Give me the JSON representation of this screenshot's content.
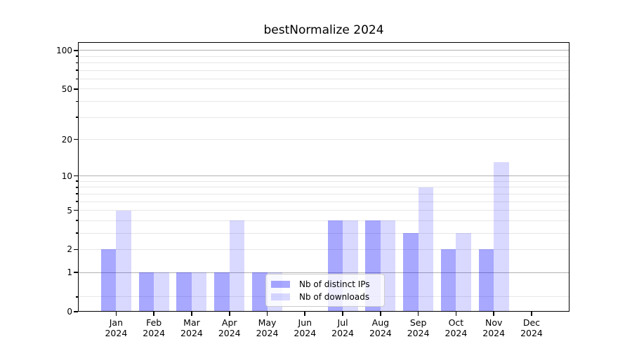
{
  "chart_data": {
    "type": "bar",
    "title": "bestNormalize 2024",
    "categories": [
      "Jan",
      "Feb",
      "Mar",
      "Apr",
      "May",
      "Jun",
      "Jul",
      "Aug",
      "Sep",
      "Oct",
      "Nov",
      "Dec"
    ],
    "x_year_label": "2024",
    "series": [
      {
        "name": "Nb of distinct IPs",
        "color": "rgba(0,0,255,0.34)",
        "hex_on_white": "#a8a8ff",
        "values": [
          2,
          1,
          1,
          1,
          1,
          0,
          4,
          4,
          3,
          2,
          2,
          0
        ]
      },
      {
        "name": "Nb of downloads",
        "color": "rgba(0,0,255,0.15)",
        "hex_on_white": "#d9d9ff",
        "values": [
          5,
          1,
          1,
          4,
          1,
          0,
          4,
          4,
          8,
          3,
          13,
          0
        ]
      }
    ],
    "y_axis": {
      "scale": "log1p",
      "range": [
        0,
        116
      ],
      "ticks": [
        0,
        1,
        2,
        5,
        10,
        20,
        50,
        100
      ],
      "major_gridlines": [
        1,
        10,
        100
      ],
      "minor_gridlines": [
        2,
        3,
        4,
        5,
        6,
        7,
        8,
        9,
        20,
        30,
        40,
        50,
        60,
        70,
        80,
        90
      ],
      "minor_ticks_below_one": [
        0.3
      ]
    },
    "legend": {
      "position": "lower center-right inside plot"
    },
    "grid": true,
    "colors": {
      "background": "#ffffff",
      "major_grid": "#b2b2b2",
      "minor_grid": "#e7e7e7",
      "spine": "#000000",
      "text": "#000000",
      "legend_border": "#cccccc"
    }
  }
}
